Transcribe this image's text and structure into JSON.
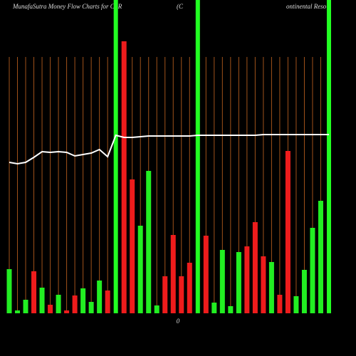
{
  "chart_data": {
    "type": "bar",
    "title": "MunafaSutra  Money Flow  Charts for CLR",
    "title_mid": "(C",
    "title_right": "ontinental Reso",
    "zero_label": "0",
    "ylim": [
      0,
      390
    ],
    "highlight": [
      13,
      23,
      39
    ],
    "highlight_color": "#22ff22",
    "grid_color": "#a0521a",
    "line_color": "#ffffff",
    "series": [
      {
        "name": "flow",
        "values": [
          62,
          4,
          19,
          59,
          36,
          12,
          26,
          4,
          25,
          35,
          16,
          46,
          32,
          null,
          382,
          188,
          123,
          200,
          11,
          52,
          110,
          52,
          71,
          null,
          109,
          15,
          89,
          10,
          86,
          94,
          128,
          80,
          72,
          26,
          228,
          24,
          61,
          120,
          158,
          null
        ],
        "colors": [
          "#22ee22",
          "#22ee22",
          "#22ee22",
          "#ee1c1c",
          "#22ee22",
          "#ee1c1c",
          "#22ee22",
          "#ee1c1c",
          "#ee1c1c",
          "#22ee22",
          "#22ee22",
          "#22ee22",
          "#ee1c1c",
          "#22ee22",
          "#ee1c1c",
          "#ee1c1c",
          "#22ee22",
          "#22ee22",
          "#22ee22",
          "#ee1c1c",
          "#ee1c1c",
          "#ee1c1c",
          "#ee1c1c",
          "#22ee22",
          "#ee1c1c",
          "#22ee22",
          "#22ee22",
          "#22ee22",
          "#22ee22",
          "#ee1c1c",
          "#ee1c1c",
          "#ee1c1c",
          "#22ee22",
          "#ee1c1c",
          "#ee1c1c",
          "#22ee22",
          "#22ee22",
          "#22ee22",
          "#22ee22",
          "#22ee22"
        ]
      },
      {
        "name": "trend",
        "values": [
          212,
          210,
          212,
          219,
          227,
          226,
          227,
          226,
          221,
          223,
          225,
          230,
          220,
          250,
          247,
          247,
          248,
          249,
          249,
          249,
          249,
          249,
          249,
          250,
          250,
          250,
          250,
          250,
          250,
          250,
          250,
          251,
          251,
          251,
          251,
          251,
          251,
          251,
          251,
          251
        ]
      }
    ]
  }
}
